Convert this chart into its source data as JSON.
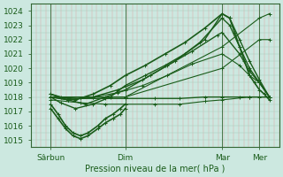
{
  "bg_color": "#cce8e0",
  "grid_color_v": "#ddaaaa",
  "grid_color_h": "#aaccbb",
  "line_color": "#1a5c1a",
  "ylabel_text": "Pression niveau de la mer( hPa )",
  "xtick_labels": [
    "Sârbun",
    "Dim",
    "Mar",
    "Mer"
  ],
  "xtick_positions": [
    0.08,
    0.38,
    0.77,
    0.92
  ],
  "ylim": [
    1014.5,
    1024.5
  ],
  "yticks": [
    1015,
    1016,
    1017,
    1018,
    1019,
    1020,
    1021,
    1022,
    1023,
    1024
  ],
  "xlim": [
    0.0,
    1.0
  ],
  "series": [
    {
      "x": [
        0.08,
        0.12,
        0.18,
        0.25,
        0.32,
        0.38,
        0.46,
        0.54,
        0.62,
        0.7,
        0.77,
        0.8,
        0.84,
        0.88,
        0.92,
        0.96
      ],
      "y": [
        1018.0,
        1017.6,
        1017.2,
        1017.5,
        1018.0,
        1018.8,
        1019.5,
        1020.2,
        1021.0,
        1022.0,
        1023.8,
        1023.5,
        1022.0,
        1020.5,
        1019.2,
        1018.0
      ],
      "lw": 1.0
    },
    {
      "x": [
        0.08,
        0.15,
        0.22,
        0.3,
        0.38,
        0.48,
        0.58,
        0.68,
        0.77,
        0.8,
        0.84,
        0.88,
        0.92,
        0.96
      ],
      "y": [
        1018.0,
        1017.8,
        1017.5,
        1018.0,
        1018.5,
        1019.5,
        1020.5,
        1021.8,
        1023.5,
        1023.0,
        1021.5,
        1020.0,
        1019.0,
        1018.0
      ],
      "lw": 1.0
    },
    {
      "x": [
        0.08,
        0.15,
        0.25,
        0.35,
        0.45,
        0.55,
        0.65,
        0.75,
        0.77,
        0.84,
        0.88,
        0.92,
        0.96
      ],
      "y": [
        1018.2,
        1017.8,
        1018.0,
        1018.5,
        1019.2,
        1020.2,
        1021.2,
        1022.3,
        1022.5,
        1021.0,
        1019.8,
        1019.0,
        1018.0
      ],
      "lw": 1.0
    },
    {
      "x": [
        0.08,
        0.2,
        0.3,
        0.38,
        0.5,
        0.6,
        0.7,
        0.77,
        0.84,
        0.88,
        0.92,
        0.96
      ],
      "y": [
        1018.0,
        1017.9,
        1017.9,
        1017.9,
        1017.9,
        1017.9,
        1018.0,
        1018.0,
        1018.0,
        1018.0,
        1018.0,
        1018.0
      ],
      "lw": 1.0
    },
    {
      "x": [
        0.08,
        0.2,
        0.3,
        0.38,
        0.5,
        0.6,
        0.7,
        0.77,
        0.88,
        0.96
      ],
      "y": [
        1017.8,
        1017.6,
        1017.5,
        1017.5,
        1017.5,
        1017.5,
        1017.7,
        1017.8,
        1018.0,
        1018.0
      ],
      "lw": 0.8
    },
    {
      "x": [
        0.08,
        0.15,
        0.25,
        0.35,
        0.45,
        0.55,
        0.65,
        0.77,
        0.84,
        0.88,
        0.92,
        0.96
      ],
      "y": [
        1018.0,
        1017.8,
        1018.0,
        1018.3,
        1018.8,
        1019.5,
        1020.3,
        1021.0,
        1020.2,
        1019.5,
        1019.0,
        1018.0
      ],
      "lw": 0.8
    },
    {
      "x": [
        0.08,
        0.11,
        0.14,
        0.17,
        0.2,
        0.23,
        0.27,
        0.3,
        0.33,
        0.36,
        0.38
      ],
      "y": [
        1017.5,
        1016.8,
        1016.0,
        1015.5,
        1015.3,
        1015.5,
        1016.0,
        1016.5,
        1016.8,
        1017.2,
        1017.5
      ],
      "lw": 1.2
    },
    {
      "x": [
        0.08,
        0.11,
        0.14,
        0.17,
        0.2,
        0.23,
        0.27,
        0.3,
        0.33,
        0.36,
        0.38
      ],
      "y": [
        1017.2,
        1016.5,
        1015.8,
        1015.3,
        1015.1,
        1015.3,
        1015.8,
        1016.2,
        1016.5,
        1016.8,
        1017.2
      ],
      "lw": 1.2
    },
    {
      "x": [
        0.08,
        0.12,
        0.18,
        0.25,
        0.32,
        0.38,
        0.46,
        0.54,
        0.62,
        0.7,
        0.77,
        0.8,
        0.82,
        0.84,
        0.86,
        0.88,
        0.9,
        0.92,
        0.94,
        0.96
      ],
      "y": [
        1018.2,
        1018.0,
        1017.8,
        1018.2,
        1018.8,
        1019.5,
        1020.2,
        1021.0,
        1021.8,
        1022.8,
        1023.8,
        1023.5,
        1022.5,
        1021.5,
        1020.5,
        1019.5,
        1019.0,
        1018.5,
        1018.2,
        1017.8
      ],
      "lw": 1.2
    },
    {
      "x": [
        0.08,
        0.38,
        0.77,
        0.92,
        0.96
      ],
      "y": [
        1018.0,
        1018.0,
        1020.0,
        1022.0,
        1022.0
      ],
      "lw": 0.8
    },
    {
      "x": [
        0.08,
        0.38,
        0.77,
        0.92,
        0.96
      ],
      "y": [
        1018.0,
        1018.0,
        1021.5,
        1023.5,
        1023.8
      ],
      "lw": 0.8
    }
  ]
}
